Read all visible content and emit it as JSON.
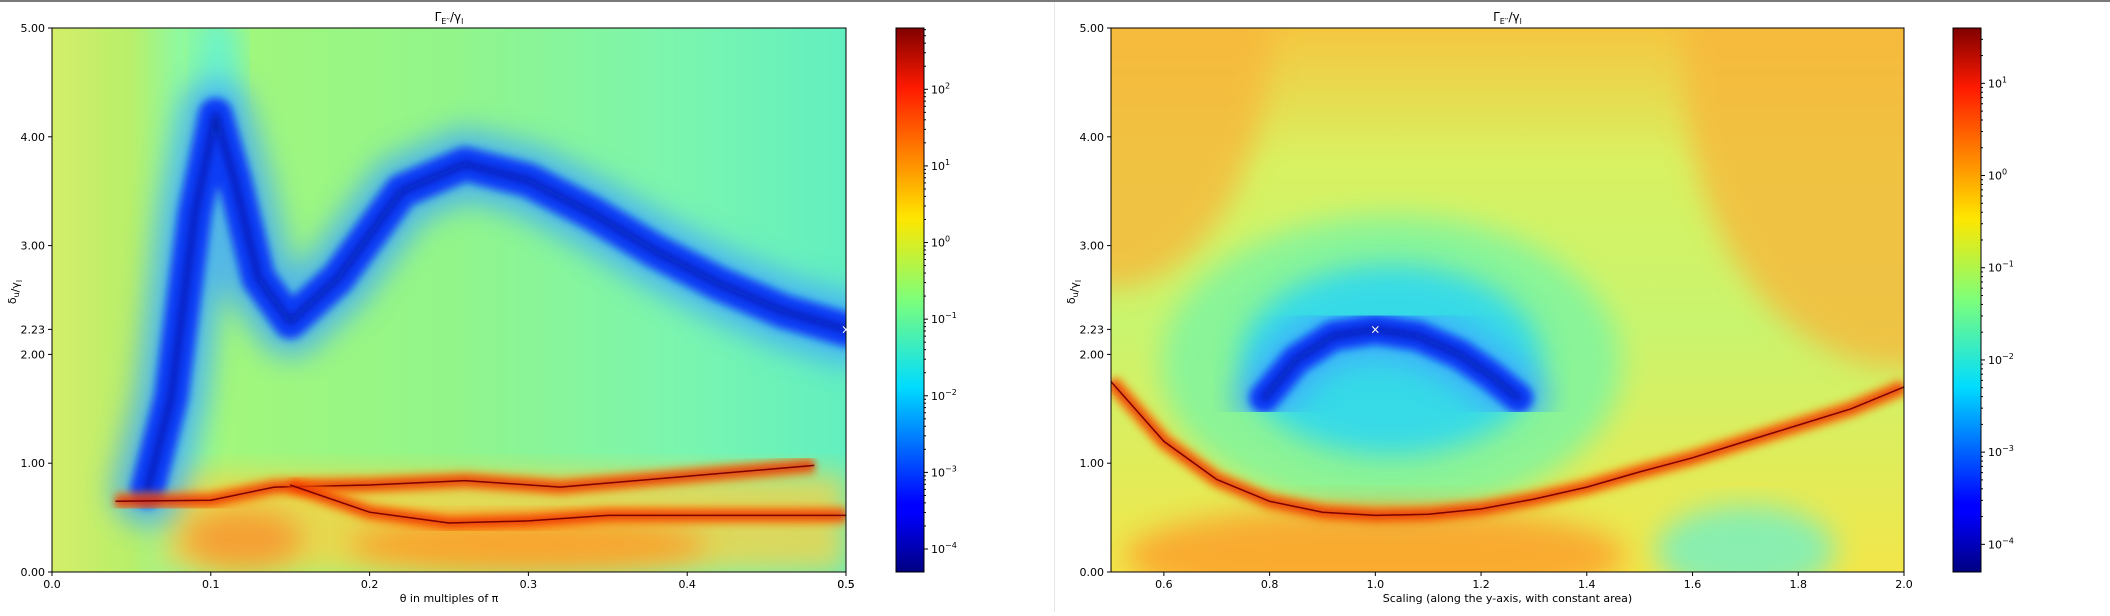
{
  "chart_data": [
    {
      "type": "heatmap",
      "title": "Γ_E′′/γ_l",
      "xlabel": "θ in multiples of π",
      "ylabel": "δ_u/γ_l",
      "xlim": [
        0.0,
        0.5
      ],
      "ylim": [
        0.0,
        5.0
      ],
      "x_ticks": [
        "0.0",
        "0.1",
        "0.2",
        "0.3",
        "0.4",
        "0.5",
        "0.5"
      ],
      "x_tick_values": [
        0.0,
        0.1,
        0.2,
        0.3,
        0.4,
        0.5,
        0.5
      ],
      "y_ticks": [
        "0.00",
        "1.00",
        "2.00",
        "2.23",
        "3.00",
        "4.00",
        "5.00"
      ],
      "y_tick_values": [
        0.0,
        1.0,
        2.0,
        2.23,
        3.0,
        4.0,
        5.0
      ],
      "colorbar": {
        "scale": "log",
        "colormap": "jet",
        "ticks": [
          "10^-4",
          "10^-3",
          "10^-2",
          "10^-1",
          "10^0",
          "10^1",
          "10^2"
        ],
        "tick_exponents": [
          -4,
          -3,
          -2,
          -1,
          0,
          1,
          2
        ],
        "range_exp": [
          -4.3,
          2.8
        ]
      },
      "marker": {
        "x": 0.5,
        "y": 2.23,
        "symbol": "×"
      },
      "valley_curve": {
        "x": [
          0.06,
          0.075,
          0.09,
          0.103,
          0.115,
          0.13,
          0.15,
          0.18,
          0.22,
          0.26,
          0.3,
          0.34,
          0.38,
          0.42,
          0.46,
          0.5
        ],
        "y": [
          0.75,
          1.6,
          3.3,
          4.2,
          3.6,
          2.7,
          2.3,
          2.7,
          3.5,
          3.75,
          3.6,
          3.3,
          2.95,
          2.65,
          2.4,
          2.23
        ]
      },
      "resonance_curves": [
        {
          "x": [
            0.04,
            0.1,
            0.14,
            0.2,
            0.26,
            0.32,
            0.4,
            0.48
          ],
          "y": [
            0.65,
            0.66,
            0.78,
            0.8,
            0.84,
            0.78,
            0.88,
            0.98
          ]
        },
        {
          "x": [
            0.15,
            0.2,
            0.25,
            0.3,
            0.35,
            0.42,
            0.5
          ],
          "y": [
            0.8,
            0.55,
            0.45,
            0.47,
            0.52,
            0.52,
            0.52
          ]
        }
      ]
    },
    {
      "type": "heatmap",
      "title": "Γ_E′′/γ_l",
      "xlabel": "Scaling (along the y-axis, with constant area)",
      "ylabel": "δ_u/γ_l",
      "xlim": [
        0.5,
        2.0
      ],
      "ylim": [
        0.0,
        5.0
      ],
      "x_ticks": [
        "0.6",
        "0.8",
        "1.0",
        "1.2",
        "1.4",
        "1.6",
        "1.8",
        "2.0"
      ],
      "x_tick_values": [
        0.6,
        0.8,
        1.0,
        1.2,
        1.4,
        1.6,
        1.8,
        2.0
      ],
      "y_ticks": [
        "0.00",
        "1.00",
        "2.00",
        "2.23",
        "3.00",
        "4.00",
        "5.00"
      ],
      "y_tick_values": [
        0.0,
        1.0,
        2.0,
        2.23,
        3.0,
        4.0,
        5.0
      ],
      "colorbar": {
        "scale": "log",
        "colormap": "jet",
        "ticks": [
          "10^-4",
          "10^-3",
          "10^-2",
          "10^-1",
          "10^0",
          "10^1"
        ],
        "tick_exponents": [
          -4,
          -3,
          -2,
          -1,
          0,
          1
        ],
        "range_exp": [
          -4.3,
          1.6
        ]
      },
      "marker": {
        "x": 1.0,
        "y": 2.23,
        "symbol": "×"
      },
      "valley_curve": {
        "x": [
          0.79,
          0.85,
          0.92,
          1.0,
          1.08,
          1.16,
          1.22,
          1.27
        ],
        "y": [
          1.6,
          1.95,
          2.17,
          2.23,
          2.17,
          2.0,
          1.8,
          1.6
        ]
      },
      "resonance_curves": [
        {
          "x": [
            0.5,
            0.6,
            0.7,
            0.8,
            0.9,
            1.0,
            1.1,
            1.2,
            1.3,
            1.4,
            1.5,
            1.6,
            1.7,
            1.8,
            1.9,
            2.0
          ],
          "y": [
            1.75,
            1.2,
            0.85,
            0.65,
            0.55,
            0.52,
            0.53,
            0.58,
            0.67,
            0.78,
            0.92,
            1.05,
            1.2,
            1.35,
            1.5,
            1.7
          ]
        }
      ]
    }
  ]
}
